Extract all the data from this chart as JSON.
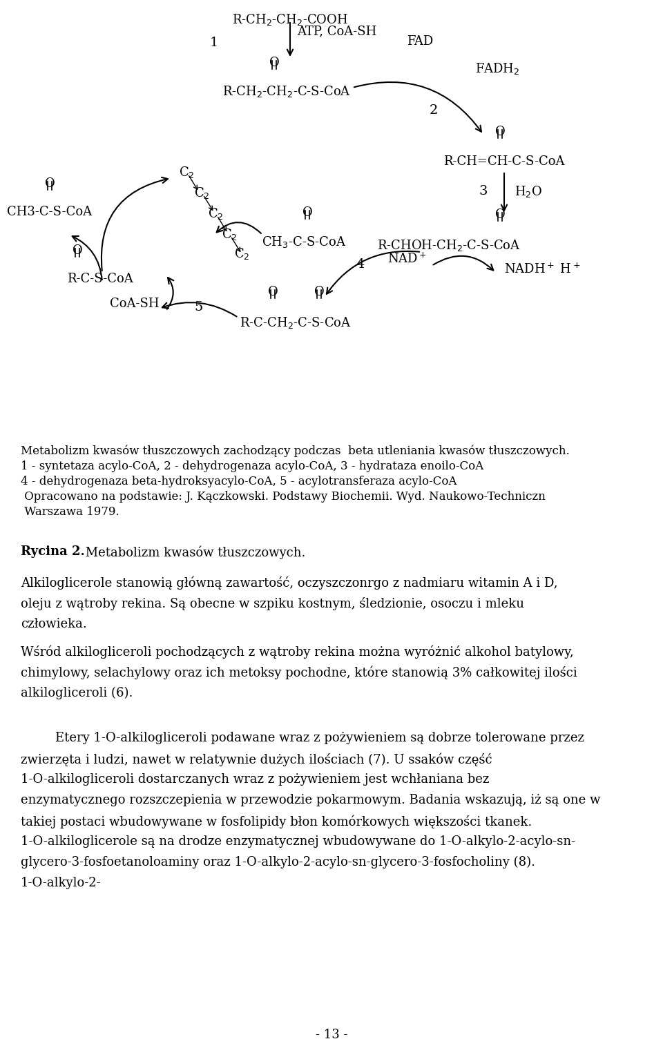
{
  "bg_color": "#ffffff",
  "caption_lines": [
    "Metabolizm kwasów tłuszczowych zachodzący podczas  beta utleniania kwasów tłuszczowych.",
    "1 - syntetaza acylo-CoA, 2 - dehydrogenaza acylo-CoA, 3 - hydrataza enoilo-CoA",
    "4 - dehydrogenaza beta-hydroksyacylo-CoA, 5 - acylotransferaza acylo-CoA",
    " Opracowano na podstawie: J. Kączkowski. Podstawy Biochemii. Wyd. Naukowo-Techniczn",
    " Warszawa 1979."
  ],
  "figure2_bold": "Rycina 2.",
  "figure2_rest": " Metabolizm kwasów tłuszczowych.",
  "para1": "Alkiloglicerole stanowią główną zawartość, oczyszczonrgo z nadmiaru witamin A i D, oleju z wątroby rekina. Są obecne w szpiku kostnym, śledzionie, osoczu i mleku człowieka.",
  "para2": "Wśród alkilogliceroli pochodzących z wątroby rekina można wyróżnić alkohol batylowy, chimylowy, selachylowy oraz ich metoksy pochodne, które stanowią 3% całkowitej ilości alkilogliceroli (6).",
  "para3": "Etery 1-O-alkilogliceroli podawane wraz z pożywieniem są dobrze tolerowane przez zwierzęta i ludzi, nawet w relatywnie dużych ilościach (7). U ssaków część 1-O-alkilogliceroli dostarczanych wraz z pożywieniem jest wchłaniana bez enzymatycznego rozszczepienia w przewodzie pokarmowym. Badania wskazują, iż są one w takiej postaci wbudowywane w fosfolipidy błon komórkowych większości tkanek. 1-O-alkiloglicerole są na drodze enzymatycznej wbudowywane do 1-O-alkylo-2-acylo-​sn-glycero-3-fosfoetanoloaminy oraz 1-O-alkylo-2-acylo-​sn-glycero-3-fosfocholiny (8). 1-O-alkylo-2-",
  "page_number": "- 13 -"
}
